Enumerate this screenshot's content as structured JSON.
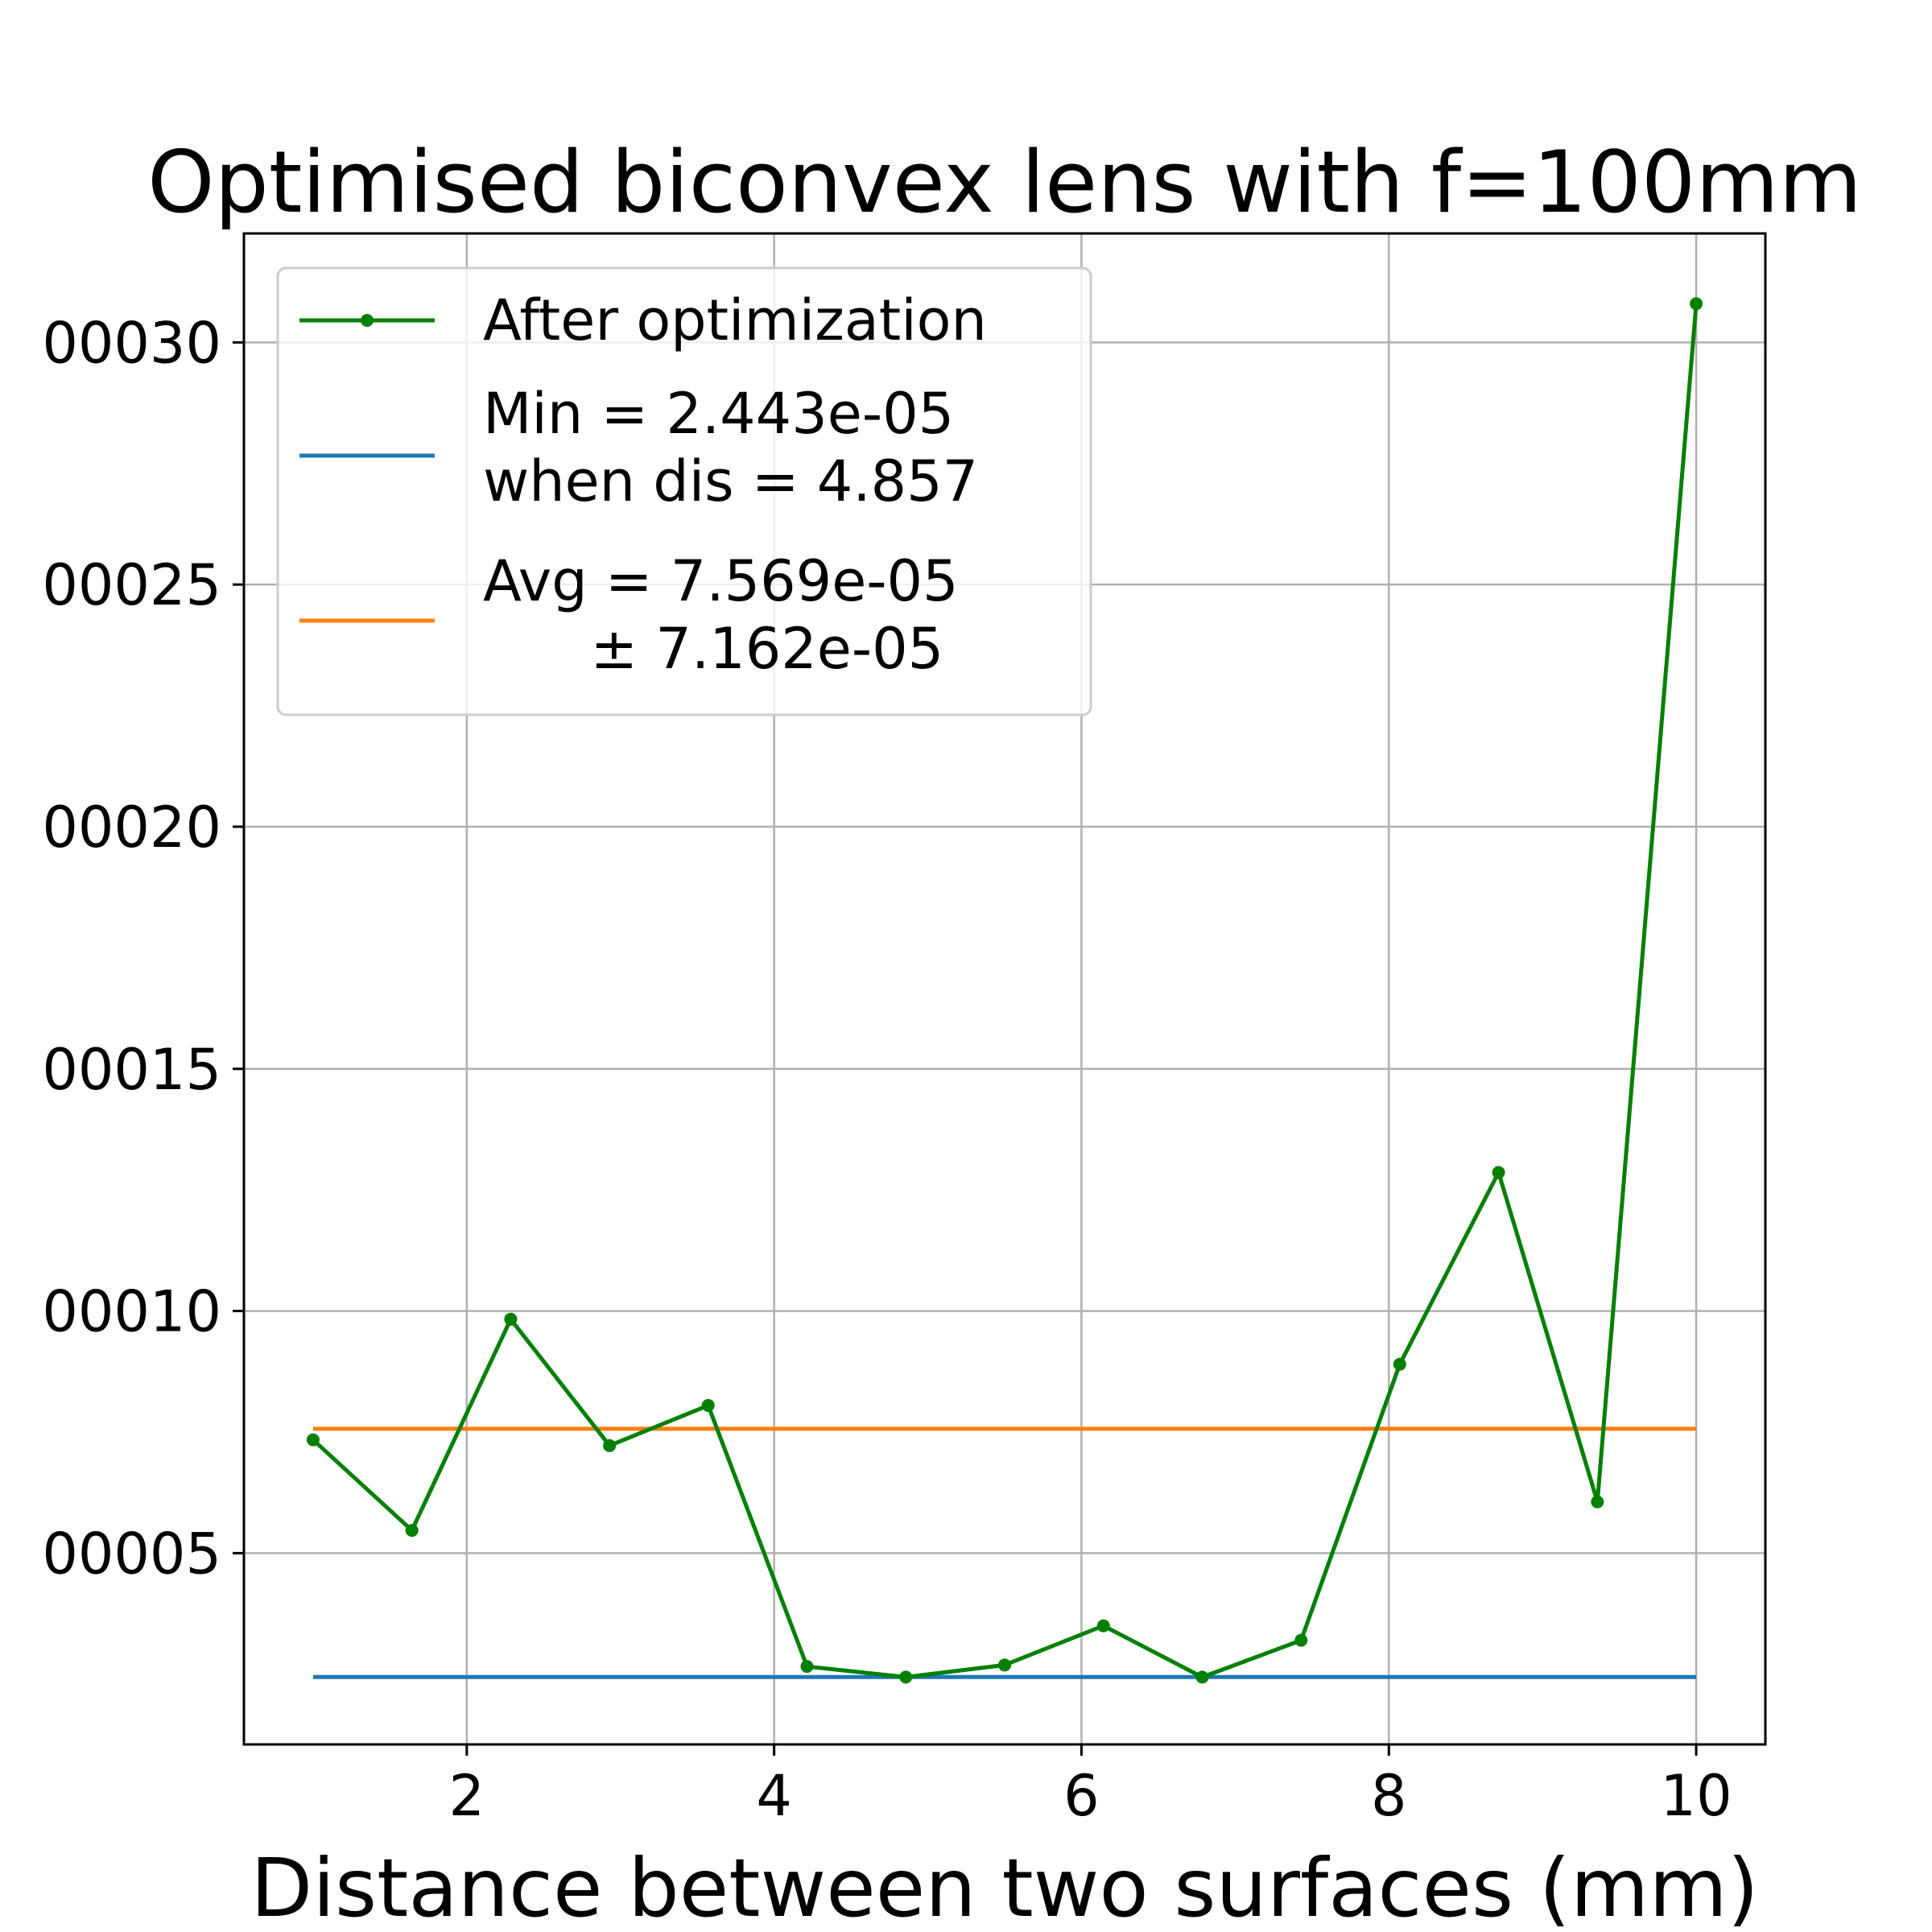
{
  "chart_data": {
    "type": "line",
    "title": "Optimised biconvex lens with f=100mm",
    "xlabel": "Distance between two surfaces (mm)",
    "ylabel": "",
    "xlim": [
      0.55,
      10.45
    ],
    "ylim": [
      1.05e-05,
      0.0003225
    ],
    "grid": true,
    "legend_position": "upper-left",
    "x_ticks": [
      2,
      4,
      6,
      8,
      10
    ],
    "x_tick_labels": [
      "2",
      "4",
      "6",
      "8",
      "10"
    ],
    "y_ticks": [
      5e-05,
      0.0001,
      0.00015,
      0.0002,
      0.00025,
      0.0003
    ],
    "y_tick_labels": [
      "00005",
      "00010",
      "00015",
      "00020",
      "00025",
      "00030"
    ],
    "series": [
      {
        "name": "After optimization",
        "color": "#008000",
        "marker": "dot",
        "x": [
          1.0,
          1.643,
          2.286,
          2.929,
          3.571,
          4.214,
          4.857,
          5.5,
          6.143,
          6.786,
          7.429,
          8.071,
          8.714,
          9.357,
          10.0
        ],
        "y": [
          7.34e-05,
          5.47e-05,
          9.83e-05,
          7.22e-05,
          8.05e-05,
          2.66e-05,
          2.44e-05,
          2.69e-05,
          3.5e-05,
          2.44e-05,
          3.2e-05,
          8.9e-05,
          0.0001286,
          6.06e-05,
          0.000308
        ]
      }
    ],
    "reference_lines": [
      {
        "name": "Min = 2.443e-05\nwhen dis = 4.857",
        "label_lines": [
          "Min = 2.443e-05",
          "when dis = 4.857"
        ],
        "color": "#1f77b4",
        "y": 2.443e-05,
        "x_range": [
          1.0,
          10.0
        ]
      },
      {
        "name": "Avg = 7.569e-05\n± 7.162e-05",
        "label_lines": [
          "Avg = 7.569e-05",
          "      ± 7.162e-05"
        ],
        "color": "#ff7f0e",
        "y": 7.569e-05,
        "x_range": [
          1.0,
          10.0
        ]
      }
    ]
  }
}
